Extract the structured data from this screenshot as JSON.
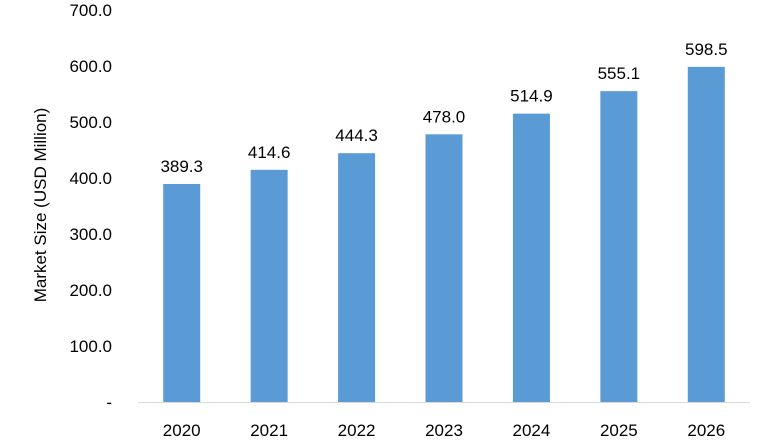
{
  "chart_data": {
    "type": "bar",
    "categories": [
      "2020",
      "2021",
      "2022",
      "2023",
      "2024",
      "2025",
      "2026"
    ],
    "values": [
      389.3,
      414.6,
      444.3,
      478.0,
      514.9,
      555.1,
      598.5
    ],
    "value_labels": [
      "389.3",
      "414.6",
      "444.3",
      "478.0",
      "514.9",
      "555.1",
      "598.5"
    ],
    "title": "",
    "xlabel": "",
    "ylabel": "Market Size (USD Million)",
    "ylim": [
      0,
      700
    ],
    "yticks": [
      0,
      100,
      200,
      300,
      400,
      500,
      600,
      700
    ],
    "ytick_labels": [
      "-",
      "100.0",
      "200.0",
      "300.0",
      "400.0",
      "500.0",
      "600.0",
      "700.0"
    ],
    "grid": false,
    "legend": "none",
    "bar_color": "#5b9bd5",
    "axis_color": "#d9d9d9"
  }
}
